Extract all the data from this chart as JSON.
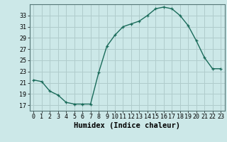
{
  "x": [
    0,
    1,
    2,
    3,
    4,
    5,
    6,
    7,
    8,
    9,
    10,
    11,
    12,
    13,
    14,
    15,
    16,
    17,
    18,
    19,
    20,
    21,
    22,
    23
  ],
  "y": [
    21.5,
    21.2,
    19.5,
    18.8,
    17.5,
    17.2,
    17.2,
    17.2,
    22.8,
    27.5,
    29.5,
    31.0,
    31.5,
    32.0,
    33.0,
    34.2,
    34.5,
    34.2,
    33.0,
    31.2,
    28.5,
    25.5,
    23.5,
    23.5
  ],
  "xlabel": "Humidex (Indice chaleur)",
  "xlim": [
    -0.5,
    23.5
  ],
  "ylim": [
    16,
    35
  ],
  "yticks": [
    17,
    19,
    21,
    23,
    25,
    27,
    29,
    31,
    33
  ],
  "xticks": [
    0,
    1,
    2,
    3,
    4,
    5,
    6,
    7,
    8,
    9,
    10,
    11,
    12,
    13,
    14,
    15,
    16,
    17,
    18,
    19,
    20,
    21,
    22,
    23
  ],
  "line_color": "#1a6b5a",
  "marker": "+",
  "bg_color": "#cce8e8",
  "grid_color": "#b0cccc",
  "xlabel_fontsize": 7.5,
  "tick_fontsize": 6.0,
  "linewidth": 1.0,
  "markersize": 3.5,
  "markeredgewidth": 0.9
}
